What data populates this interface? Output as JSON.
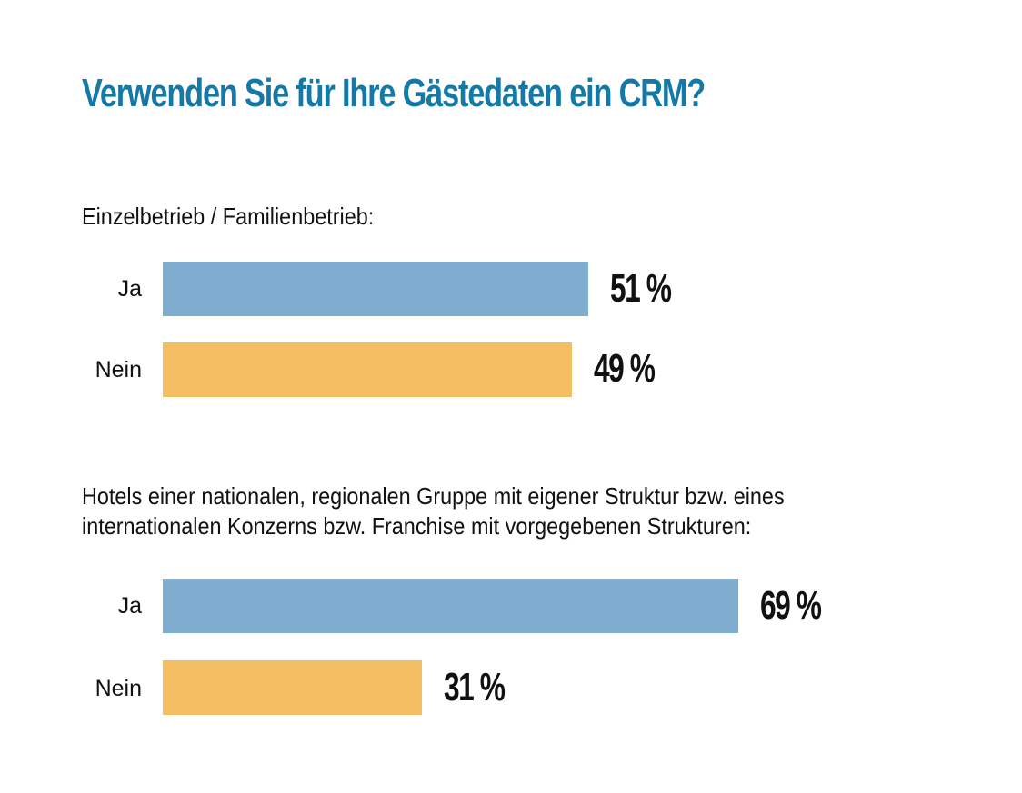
{
  "title": "Verwenden Sie für Ihre Gästedaten ein CRM?",
  "colors": {
    "title": "#1479a6",
    "ja": "#7eadcf",
    "nein": "#f4bf63",
    "text": "#111111"
  },
  "chart_data": [
    {
      "type": "bar",
      "orientation": "horizontal",
      "title": "Einzelbetrieb / Familienbetrieb:",
      "categories": [
        "Ja",
        "Nein"
      ],
      "values": [
        51,
        49
      ],
      "value_labels": [
        "51 %",
        "49 %"
      ],
      "unit": "%",
      "xlim": [
        0,
        100
      ],
      "grid": false,
      "legend": "none"
    },
    {
      "type": "bar",
      "orientation": "horizontal",
      "title": "Hotels einer nationalen, regionalen Gruppe mit eigener Struktur bzw. eines internationalen Konzerns bzw. Franchise mit vorgegebenen Strukturen:",
      "title_lines": [
        "Hotels einer nationalen, regionalen Gruppe mit eigener Struktur bzw. eines",
        "internationalen Konzerns bzw. Franchise mit vorgegebenen Strukturen:"
      ],
      "categories": [
        "Ja",
        "Nein"
      ],
      "values": [
        69,
        31
      ],
      "value_labels": [
        "69 %",
        "31 %"
      ],
      "unit": "%",
      "xlim": [
        0,
        100
      ],
      "grid": false,
      "legend": "none"
    }
  ]
}
